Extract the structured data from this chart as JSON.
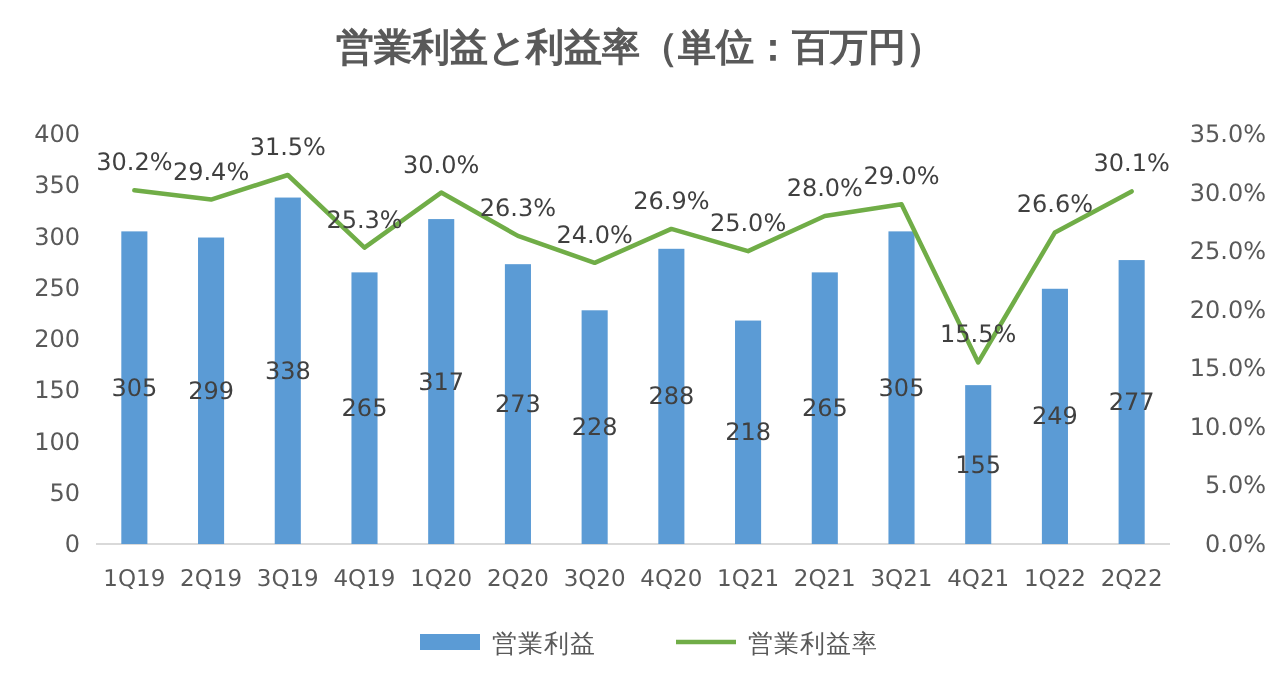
{
  "chart_data": {
    "type": "bar",
    "title": "営業利益と利益率（単位：百万円）",
    "categories": [
      "1Q19",
      "2Q19",
      "3Q19",
      "4Q19",
      "1Q20",
      "2Q20",
      "3Q20",
      "4Q20",
      "1Q21",
      "2Q21",
      "3Q21",
      "4Q21",
      "1Q22",
      "2Q22"
    ],
    "series": [
      {
        "name": "営業利益",
        "color": "#5b9bd5",
        "values": [
          305,
          299,
          338,
          265,
          317,
          273,
          228,
          288,
          218,
          265,
          305,
          155,
          249,
          277
        ],
        "value_labels": [
          "305",
          "299",
          "338",
          "265",
          "317",
          "273",
          "228",
          "288",
          "218",
          "265",
          "305",
          "155",
          "249",
          "277"
        ]
      },
      {
        "name": "営業利益率",
        "type": "line",
        "axis": "y2",
        "color": "#70ad47",
        "values": [
          30.2,
          29.4,
          31.5,
          25.3,
          30.0,
          26.3,
          24.0,
          26.9,
          25.0,
          28.0,
          29.0,
          15.5,
          26.6,
          30.1
        ],
        "value_labels": [
          "30.2%",
          "29.4%",
          "31.5%",
          "25.3%",
          "30.0%",
          "26.3%",
          "24.0%",
          "26.9%",
          "25.0%",
          "28.0%",
          "29.0%",
          "15.5%",
          "26.6%",
          "30.1%"
        ]
      }
    ],
    "ylim": [
      0,
      400
    ],
    "yticks": [
      0,
      50,
      100,
      150,
      200,
      250,
      300,
      350,
      400
    ],
    "y2lim": [
      0,
      35
    ],
    "y2ticks": [
      {
        "value": 0,
        "label": "0.0%"
      },
      {
        "value": 5,
        "label": "5.0%"
      },
      {
        "value": 10,
        "label": "10.0%"
      },
      {
        "value": 15,
        "label": "15.0%"
      },
      {
        "value": 20,
        "label": "20.0%"
      },
      {
        "value": 25,
        "label": "25.0%"
      },
      {
        "value": 30,
        "label": "30.0%"
      },
      {
        "value": 35,
        "label": "35.0%"
      }
    ],
    "legend": "bottom",
    "grid": false
  }
}
